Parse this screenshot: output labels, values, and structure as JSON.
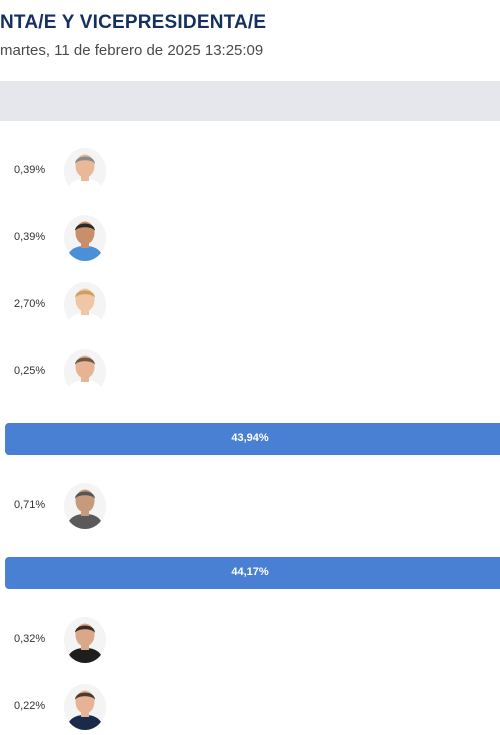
{
  "header": {
    "title": "NTA/E Y VICEPRESIDENTA/E",
    "subtitle": "martes, 11 de febrero de 2025 13:25:09"
  },
  "candidates": [
    {
      "percent": "0,39%",
      "skin": "#e8b898",
      "hair": "#8b8b8b",
      "shirt": "#ffffff"
    },
    {
      "percent": "0,39%",
      "skin": "#c98f6a",
      "hair": "#2a2a2a",
      "shirt": "#4a90d9"
    },
    {
      "percent": "2,70%",
      "skin": "#f0c6a4",
      "hair": "#caa060",
      "shirt": "#ffffff"
    },
    {
      "percent": "0,25%",
      "skin": "#e6b494",
      "hair": "#6b5a48",
      "shirt": "#ffffff"
    },
    {
      "percent": "43,94%",
      "bar": true,
      "share": 0.4394
    },
    {
      "percent": "0,71%",
      "skin": "#c79a7c",
      "hair": "#555555",
      "shirt": "#5a5a5a"
    },
    {
      "percent": "44,17%",
      "bar": true,
      "share": 0.4417
    },
    {
      "percent": "0,32%",
      "skin": "#d9a888",
      "hair": "#3a2a20",
      "shirt": "#1e1e1e"
    },
    {
      "percent": "0,22%",
      "skin": "#e6b494",
      "hair": "#4a3a30",
      "shirt": "#1a2a4a"
    }
  ],
  "colors": {
    "bar": "#4a80d3",
    "band": "#e6e7ec",
    "title": "#15305f"
  }
}
